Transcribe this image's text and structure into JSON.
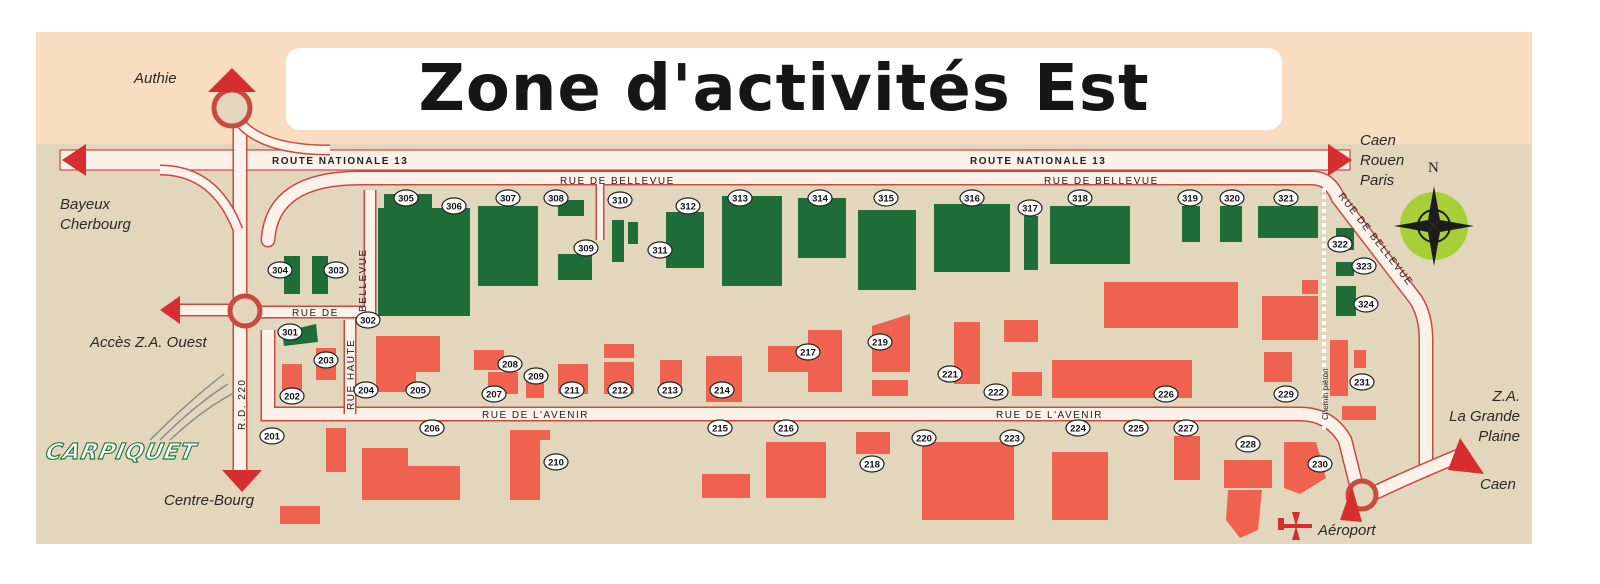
{
  "title": "Zone d'activités Est",
  "roads": {
    "rn13": "ROUTE NATIONALE 13",
    "bellevue": "RUE  DE  BELLEVUE",
    "bellevue_diag": "RUE  DE  BELLEVUE",
    "bellevue_west_a": "RUE  DE",
    "bellevue_west_b": "BELLEVUE",
    "avenir": "RUE  DE  L'AVENIR",
    "haute": "RUE HAUTE",
    "rd220": "R.D. 220",
    "chemin": "Chemin piéton"
  },
  "places": {
    "authie": "Authie",
    "bayeux": "Bayeux",
    "cherbourg": "Cherbourg",
    "acces": "Accès Z.A. Ouest",
    "centre_bourg": "Centre-Bourg",
    "caen_top": "Caen",
    "rouen": "Rouen",
    "paris": "Paris",
    "za_1": "Z.A.",
    "za_2": "La Grande",
    "za_3": "Plaine",
    "caen_bottom": "Caen",
    "aeroport": "Aéroport",
    "brand": "CARPIQUET",
    "north": "N"
  },
  "colors": {
    "background": "#e2d6bd",
    "top_band": "#f8ddc0",
    "road": "#fdf2ea",
    "road_edge": "#c94a40",
    "green_lot": "#1f6e3a",
    "red_lot": "#ef624f",
    "arrow": "#d62e2e",
    "compass": "#a8cf3a"
  },
  "parcels": [
    "201",
    "202",
    "203",
    "204",
    "205",
    "206",
    "207",
    "208",
    "209",
    "210",
    "211",
    "212",
    "213",
    "214",
    "215",
    "216",
    "217",
    "218",
    "219",
    "220",
    "221",
    "222",
    "223",
    "224",
    "225",
    "226",
    "227",
    "228",
    "229",
    "230",
    "231",
    "301",
    "302",
    "303",
    "304",
    "305",
    "306",
    "307",
    "308",
    "309",
    "310",
    "311",
    "312",
    "313",
    "314",
    "315",
    "316",
    "317",
    "318",
    "319",
    "320",
    "321",
    "322",
    "323",
    "324"
  ]
}
